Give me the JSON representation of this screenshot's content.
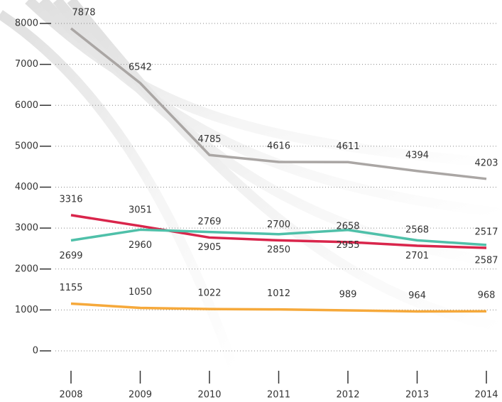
{
  "chart_data": {
    "type": "line",
    "categories": [
      "2008",
      "2009",
      "2010",
      "2011",
      "2012",
      "2013",
      "2014"
    ],
    "series": [
      {
        "color": "#aaa6a4",
        "values": [
          7878,
          6542,
          4785,
          4616,
          4611,
          4394,
          4203
        ]
      },
      {
        "color": "#d9254b",
        "values": [
          3316,
          3051,
          2769,
          2700,
          2658,
          2568,
          2517
        ]
      },
      {
        "color": "#4fc0a9",
        "values": [
          2699,
          2960,
          2905,
          2850,
          2955,
          2701,
          2587
        ]
      },
      {
        "color": "#f6a93b",
        "values": [
          1155,
          1050,
          1022,
          1012,
          989,
          964,
          968
        ]
      }
    ],
    "ylim": [
      0,
      8000
    ],
    "yticks": [
      0,
      1000,
      2000,
      3000,
      4000,
      5000,
      6000,
      7000,
      8000
    ],
    "grid": true
  }
}
